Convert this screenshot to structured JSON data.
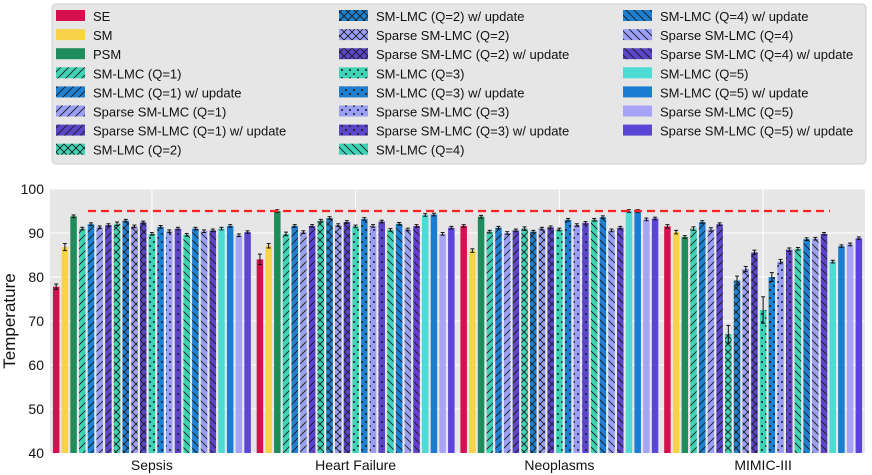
{
  "chart_data": {
    "type": "bar",
    "title": "",
    "xlabel": "",
    "ylabel": "Temperature",
    "ylim": [
      40,
      100
    ],
    "yticks": [
      40,
      50,
      60,
      70,
      80,
      90,
      100
    ],
    "grid": true,
    "legend_position": "top",
    "reference_line": {
      "value": 95,
      "color": "#ff2222",
      "style": "dashed"
    },
    "categories": [
      "Sepsis",
      "Heart Failure",
      "Neoplasms",
      "MIMIC-III"
    ],
    "series": [
      {
        "name": "SE",
        "color": "#d6104f",
        "hatch": "none",
        "values": [
          77.8,
          84.0,
          91.6,
          91.5
        ],
        "errors": [
          0.6,
          1.2,
          0.3,
          0.4
        ]
      },
      {
        "name": "SM",
        "color": "#f8d34a",
        "hatch": "none",
        "values": [
          86.8,
          87.1,
          86.0,
          90.2
        ],
        "errors": [
          0.8,
          0.5,
          0.4,
          0.4
        ]
      },
      {
        "name": "PSM",
        "color": "#1f8c5c",
        "hatch": "none",
        "values": [
          93.8,
          95.0,
          93.7,
          89.1
        ],
        "errors": [
          0.3,
          0.3,
          0.3,
          0.3
        ]
      },
      {
        "name": "SM-LMC (Q=1)",
        "color": "#3fd3b6",
        "hatch": "slash",
        "values": [
          91.0,
          89.8,
          90.3,
          91.0
        ],
        "errors": [
          0.3,
          0.4,
          0.3,
          0.4
        ]
      },
      {
        "name": "SM-LMC (Q=1) w/ update",
        "color": "#1f7fd0",
        "hatch": "slash",
        "values": [
          92.0,
          91.6,
          91.2,
          92.5
        ],
        "errors": [
          0.3,
          0.3,
          0.3,
          0.3
        ]
      },
      {
        "name": "Sparse SM-LMC (Q=1)",
        "color": "#9a9ef5",
        "hatch": "slash",
        "values": [
          91.3,
          90.2,
          90.0,
          90.8
        ],
        "errors": [
          0.3,
          0.3,
          0.3,
          0.4
        ]
      },
      {
        "name": "Sparse SM-LMC (Q=1) w/ update",
        "color": "#5b45c9",
        "hatch": "slash",
        "values": [
          91.8,
          91.6,
          90.6,
          92.0
        ],
        "errors": [
          0.3,
          0.3,
          0.3,
          0.3
        ]
      },
      {
        "name": "SM-LMC (Q=2)",
        "color": "#3fd3b6",
        "hatch": "cross",
        "values": [
          92.1,
          92.8,
          91.0,
          67.0
        ],
        "errors": [
          0.4,
          0.3,
          0.4,
          2.0
        ]
      },
      {
        "name": "SM-LMC (Q=2) w/ update",
        "color": "#1f7fd0",
        "hatch": "cross",
        "values": [
          92.8,
          93.4,
          90.3,
          79.2
        ],
        "errors": [
          0.3,
          0.3,
          0.3,
          1.0
        ]
      },
      {
        "name": "Sparse SM-LMC (Q=2)",
        "color": "#9a9ef5",
        "hatch": "cross",
        "values": [
          91.5,
          91.8,
          91.0,
          81.8
        ],
        "errors": [
          0.3,
          0.3,
          0.3,
          0.6
        ]
      },
      {
        "name": "Sparse SM-LMC (Q=2) w/ update",
        "color": "#5b45c9",
        "hatch": "cross",
        "values": [
          92.4,
          92.5,
          91.3,
          85.6
        ],
        "errors": [
          0.3,
          0.3,
          0.3,
          0.5
        ]
      },
      {
        "name": "SM-LMC (Q=3)",
        "color": "#3fd3b6",
        "hatch": "dot",
        "values": [
          89.8,
          91.5,
          90.8,
          72.5
        ],
        "errors": [
          0.3,
          0.3,
          0.3,
          3.0
        ]
      },
      {
        "name": "SM-LMC (Q=3) w/ update",
        "color": "#1f7fd0",
        "hatch": "dot",
        "values": [
          91.4,
          93.2,
          93.0,
          80.0
        ],
        "errors": [
          0.3,
          0.3,
          0.3,
          1.0
        ]
      },
      {
        "name": "Sparse SM-LMC (Q=3)",
        "color": "#9a9ef5",
        "hatch": "dot",
        "values": [
          90.4,
          91.6,
          91.8,
          83.5
        ],
        "errors": [
          0.3,
          0.3,
          0.3,
          0.5
        ]
      },
      {
        "name": "Sparse SM-LMC (Q=3) w/ update",
        "color": "#5b45c9",
        "hatch": "dot",
        "values": [
          91.0,
          92.6,
          92.3,
          86.2
        ],
        "errors": [
          0.3,
          0.3,
          0.3,
          0.4
        ]
      },
      {
        "name": "SM-LMC (Q=4)",
        "color": "#3fd3b6",
        "hatch": "backslash",
        "values": [
          89.6,
          90.7,
          93.0,
          86.4
        ],
        "errors": [
          0.3,
          0.3,
          0.3,
          0.3
        ]
      },
      {
        "name": "SM-LMC (Q=4) w/ update",
        "color": "#1f7fd0",
        "hatch": "backslash",
        "values": [
          91.0,
          92.1,
          93.6,
          88.6
        ],
        "errors": [
          0.3,
          0.3,
          0.3,
          0.3
        ]
      },
      {
        "name": "Sparse SM-LMC (Q=4)",
        "color": "#9a9ef5",
        "hatch": "backslash",
        "values": [
          90.4,
          90.8,
          90.6,
          88.7
        ],
        "errors": [
          0.3,
          0.3,
          0.3,
          0.3
        ]
      },
      {
        "name": "Sparse SM-LMC (Q=4) w/ update",
        "color": "#5b45c9",
        "hatch": "backslash",
        "values": [
          90.6,
          91.6,
          91.2,
          89.8
        ],
        "errors": [
          0.3,
          0.3,
          0.3,
          0.3
        ]
      },
      {
        "name": "SM-LMC (Q=5)",
        "color": "#4ddbd4",
        "hatch": "none",
        "values": [
          91.0,
          94.1,
          95.0,
          83.5
        ],
        "errors": [
          0.3,
          0.3,
          0.3,
          0.3
        ]
      },
      {
        "name": "SM-LMC (Q=5) w/ update",
        "color": "#1a7dd2",
        "hatch": "none",
        "values": [
          91.6,
          94.2,
          95.0,
          87.0
        ],
        "errors": [
          0.3,
          0.3,
          0.3,
          0.3
        ]
      },
      {
        "name": "Sparse SM-LMC (Q=5)",
        "color": "#a7a4f7",
        "hatch": "none",
        "values": [
          89.5,
          89.8,
          93.1,
          87.4
        ],
        "errors": [
          0.3,
          0.3,
          0.3,
          0.3
        ]
      },
      {
        "name": "Sparse SM-LMC (Q=5) w/ update",
        "color": "#5b45d6",
        "hatch": "none",
        "values": [
          90.2,
          91.2,
          93.3,
          88.8
        ],
        "errors": [
          0.3,
          0.3,
          0.3,
          0.3
        ]
      }
    ]
  }
}
